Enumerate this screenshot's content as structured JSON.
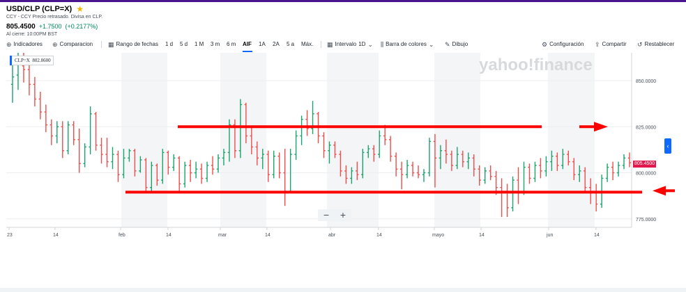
{
  "header": {
    "title": "USD/CLP (CLP=X)",
    "subtitle": "CCY - CCY Precio retrasado. Divisa en CLP.",
    "price": "805.4500",
    "change": "+1.7500",
    "change_pct": "(+0.2177%)",
    "close_note": "Al cierre: 10:00PM BST"
  },
  "toolbar": {
    "indicators": "Indicadores",
    "comparison": "Comparacion",
    "date_range": "Rango de fechas",
    "ranges": [
      "1 d",
      "5 d",
      "1 M",
      "3 m",
      "6 m",
      "AIF",
      "1A",
      "2A",
      "5 a",
      "Máx."
    ],
    "active_range": "AIF",
    "interval_label": "Intervalo",
    "interval_value": "1D",
    "bar_colors": "Barra de colores",
    "drawing": "Dibujo",
    "settings": "Configuración",
    "share": "Compartir",
    "reset": "Restablecer"
  },
  "tooltip": {
    "symbol": "CLP=X",
    "value": "802.8600"
  },
  "watermark": "yahoo!finance",
  "zoom": {
    "minus": "−",
    "plus": "+"
  },
  "current_price_badge": "805.4500",
  "colors": {
    "up": "#1aa36f",
    "down": "#ef4d4d",
    "annotation": "#ff0000",
    "accent": "#0f69ff",
    "header_bar": "#4a148c"
  },
  "chart_data": {
    "type": "ohlc",
    "y_ticks": [
      "850.0000",
      "825.0000",
      "800.0000",
      "775.0000"
    ],
    "ylim": [
      770,
      835
    ],
    "x_ticks": [
      "23",
      "14",
      "feb",
      "14",
      "mar",
      "14",
      "abr",
      "14",
      "mayo",
      "14",
      "jun",
      "14"
    ],
    "bars": [
      {
        "o": 848.0,
        "h": 862.0,
        "l": 838.0,
        "c": 852.0
      },
      {
        "o": 853.0,
        "h": 868.0,
        "l": 845.0,
        "c": 860.0
      },
      {
        "o": 858.0,
        "h": 866.0,
        "l": 849.0,
        "c": 856.0
      },
      {
        "o": 856.0,
        "h": 862.0,
        "l": 842.0,
        "c": 848.0
      },
      {
        "o": 848.0,
        "h": 852.0,
        "l": 836.0,
        "c": 840.0
      },
      {
        "o": 840.0,
        "h": 844.0,
        "l": 829.0,
        "c": 833.0
      },
      {
        "o": 833.0,
        "h": 837.0,
        "l": 822.0,
        "c": 826.0
      },
      {
        "o": 826.0,
        "h": 829.0,
        "l": 815.0,
        "c": 820.0
      },
      {
        "o": 820.0,
        "h": 828.0,
        "l": 816.0,
        "c": 825.0
      },
      {
        "o": 825.0,
        "h": 828.0,
        "l": 808.0,
        "c": 812.0
      },
      {
        "o": 812.0,
        "h": 828.0,
        "l": 810.0,
        "c": 826.0
      },
      {
        "o": 826.0,
        "h": 828.0,
        "l": 815.0,
        "c": 818.0
      },
      {
        "o": 818.0,
        "h": 824.0,
        "l": 800.0,
        "c": 805.0
      },
      {
        "o": 805.0,
        "h": 816.0,
        "l": 803.0,
        "c": 814.0
      },
      {
        "o": 814.0,
        "h": 836.0,
        "l": 810.0,
        "c": 832.0
      },
      {
        "o": 832.0,
        "h": 833.0,
        "l": 812.0,
        "c": 815.0
      },
      {
        "o": 815.0,
        "h": 819.0,
        "l": 805.0,
        "c": 810.0
      },
      {
        "o": 810.0,
        "h": 819.0,
        "l": 803.0,
        "c": 806.0
      },
      {
        "o": 806.0,
        "h": 814.0,
        "l": 802.0,
        "c": 810.0
      },
      {
        "o": 810.0,
        "h": 812.0,
        "l": 795.0,
        "c": 799.0
      },
      {
        "o": 799.0,
        "h": 813.0,
        "l": 797.0,
        "c": 808.0
      },
      {
        "o": 808.0,
        "h": 813.0,
        "l": 806.0,
        "c": 812.0
      },
      {
        "o": 812.0,
        "h": 813.0,
        "l": 798.0,
        "c": 801.0
      },
      {
        "o": 801.0,
        "h": 809.0,
        "l": 800.0,
        "c": 807.0
      },
      {
        "o": 807.0,
        "h": 808.0,
        "l": 789.0,
        "c": 792.0
      },
      {
        "o": 792.0,
        "h": 806.0,
        "l": 790.0,
        "c": 804.0
      },
      {
        "o": 804.0,
        "h": 805.0,
        "l": 793.0,
        "c": 796.0
      },
      {
        "o": 796.0,
        "h": 813.0,
        "l": 794.0,
        "c": 811.0
      },
      {
        "o": 811.0,
        "h": 812.0,
        "l": 799.0,
        "c": 803.0
      },
      {
        "o": 803.0,
        "h": 810.0,
        "l": 801.0,
        "c": 808.0
      },
      {
        "o": 808.0,
        "h": 809.0,
        "l": 790.0,
        "c": 794.0
      },
      {
        "o": 794.0,
        "h": 806.0,
        "l": 792.0,
        "c": 804.0
      },
      {
        "o": 804.0,
        "h": 807.0,
        "l": 795.0,
        "c": 800.0
      },
      {
        "o": 800.0,
        "h": 806.0,
        "l": 797.0,
        "c": 802.0
      },
      {
        "o": 802.0,
        "h": 805.0,
        "l": 794.0,
        "c": 797.0
      },
      {
        "o": 797.0,
        "h": 806.0,
        "l": 795.0,
        "c": 804.0
      },
      {
        "o": 804.0,
        "h": 809.0,
        "l": 799.0,
        "c": 802.0
      },
      {
        "o": 802.0,
        "h": 810.0,
        "l": 800.0,
        "c": 808.0
      },
      {
        "o": 808.0,
        "h": 813.0,
        "l": 804.0,
        "c": 811.0
      },
      {
        "o": 811.0,
        "h": 829.0,
        "l": 806.0,
        "c": 826.0
      },
      {
        "o": 826.0,
        "h": 829.0,
        "l": 808.0,
        "c": 812.0
      },
      {
        "o": 812.0,
        "h": 840.0,
        "l": 808.0,
        "c": 837.0
      },
      {
        "o": 837.0,
        "h": 838.0,
        "l": 816.0,
        "c": 820.0
      },
      {
        "o": 820.0,
        "h": 825.0,
        "l": 810.0,
        "c": 814.0
      },
      {
        "o": 814.0,
        "h": 817.0,
        "l": 804.0,
        "c": 808.0
      },
      {
        "o": 808.0,
        "h": 813.0,
        "l": 802.0,
        "c": 810.0
      },
      {
        "o": 810.0,
        "h": 812.0,
        "l": 795.0,
        "c": 799.0
      },
      {
        "o": 799.0,
        "h": 812.0,
        "l": 797.0,
        "c": 809.0
      },
      {
        "o": 809.0,
        "h": 811.0,
        "l": 797.0,
        "c": 800.0
      },
      {
        "o": 800.0,
        "h": 813.0,
        "l": 782.0,
        "c": 790.0
      },
      {
        "o": 790.0,
        "h": 813.0,
        "l": 789.0,
        "c": 810.0
      },
      {
        "o": 810.0,
        "h": 823.0,
        "l": 807.0,
        "c": 820.0
      },
      {
        "o": 820.0,
        "h": 831.0,
        "l": 815.0,
        "c": 829.0
      },
      {
        "o": 829.0,
        "h": 834.0,
        "l": 820.0,
        "c": 824.0
      },
      {
        "o": 824.0,
        "h": 839.0,
        "l": 821.0,
        "c": 832.0
      },
      {
        "o": 832.0,
        "h": 833.0,
        "l": 816.0,
        "c": 820.0
      },
      {
        "o": 820.0,
        "h": 822.0,
        "l": 808.0,
        "c": 812.0
      },
      {
        "o": 812.0,
        "h": 817.0,
        "l": 805.0,
        "c": 815.0
      },
      {
        "o": 815.0,
        "h": 817.0,
        "l": 808.0,
        "c": 810.0
      },
      {
        "o": 810.0,
        "h": 812.0,
        "l": 798.0,
        "c": 801.0
      },
      {
        "o": 801.0,
        "h": 804.0,
        "l": 794.0,
        "c": 797.0
      },
      {
        "o": 797.0,
        "h": 803.0,
        "l": 794.0,
        "c": 801.0
      },
      {
        "o": 801.0,
        "h": 806.0,
        "l": 796.0,
        "c": 799.0
      },
      {
        "o": 799.0,
        "h": 813.0,
        "l": 797.0,
        "c": 811.0
      },
      {
        "o": 811.0,
        "h": 815.0,
        "l": 808.0,
        "c": 813.0
      },
      {
        "o": 813.0,
        "h": 815.0,
        "l": 806.0,
        "c": 810.0
      },
      {
        "o": 810.0,
        "h": 823.0,
        "l": 808.0,
        "c": 820.0
      },
      {
        "o": 820.0,
        "h": 826.0,
        "l": 815.0,
        "c": 818.0
      },
      {
        "o": 818.0,
        "h": 820.0,
        "l": 806.0,
        "c": 809.0
      },
      {
        "o": 809.0,
        "h": 811.0,
        "l": 798.0,
        "c": 802.0
      },
      {
        "o": 802.0,
        "h": 806.0,
        "l": 791.0,
        "c": 799.0
      },
      {
        "o": 799.0,
        "h": 807.0,
        "l": 797.0,
        "c": 804.0
      },
      {
        "o": 804.0,
        "h": 806.0,
        "l": 798.0,
        "c": 800.0
      },
      {
        "o": 800.0,
        "h": 804.0,
        "l": 797.0,
        "c": 799.0
      },
      {
        "o": 799.0,
        "h": 802.0,
        "l": 795.0,
        "c": 800.0
      },
      {
        "o": 800.0,
        "h": 819.0,
        "l": 798.0,
        "c": 817.0
      },
      {
        "o": 817.0,
        "h": 821.0,
        "l": 792.0,
        "c": 808.0
      },
      {
        "o": 808.0,
        "h": 815.0,
        "l": 802.0,
        "c": 812.0
      },
      {
        "o": 812.0,
        "h": 818.0,
        "l": 805.0,
        "c": 810.0
      },
      {
        "o": 810.0,
        "h": 812.0,
        "l": 801.0,
        "c": 804.0
      },
      {
        "o": 804.0,
        "h": 814.0,
        "l": 802.0,
        "c": 810.0
      },
      {
        "o": 810.0,
        "h": 812.0,
        "l": 803.0,
        "c": 806.0
      },
      {
        "o": 806.0,
        "h": 811.0,
        "l": 802.0,
        "c": 808.0
      },
      {
        "o": 808.0,
        "h": 810.0,
        "l": 798.0,
        "c": 802.0
      },
      {
        "o": 802.0,
        "h": 804.0,
        "l": 793.0,
        "c": 796.0
      },
      {
        "o": 796.0,
        "h": 803.0,
        "l": 794.0,
        "c": 801.0
      },
      {
        "o": 801.0,
        "h": 804.0,
        "l": 796.0,
        "c": 798.0
      },
      {
        "o": 798.0,
        "h": 801.0,
        "l": 788.0,
        "c": 792.0
      },
      {
        "o": 792.0,
        "h": 797.0,
        "l": 776.0,
        "c": 790.0
      },
      {
        "o": 790.0,
        "h": 794.0,
        "l": 776.0,
        "c": 781.0
      },
      {
        "o": 781.0,
        "h": 798.0,
        "l": 779.0,
        "c": 796.0
      },
      {
        "o": 796.0,
        "h": 803.0,
        "l": 783.0,
        "c": 789.0
      },
      {
        "o": 789.0,
        "h": 806.0,
        "l": 788.0,
        "c": 803.0
      },
      {
        "o": 803.0,
        "h": 805.0,
        "l": 794.0,
        "c": 797.0
      },
      {
        "o": 797.0,
        "h": 806.0,
        "l": 795.0,
        "c": 804.0
      },
      {
        "o": 804.0,
        "h": 808.0,
        "l": 797.0,
        "c": 801.0
      },
      {
        "o": 801.0,
        "h": 809.0,
        "l": 798.0,
        "c": 806.0
      },
      {
        "o": 806.0,
        "h": 812.0,
        "l": 801.0,
        "c": 809.0
      },
      {
        "o": 809.0,
        "h": 811.0,
        "l": 801.0,
        "c": 804.0
      },
      {
        "o": 804.0,
        "h": 813.0,
        "l": 802.0,
        "c": 810.0
      },
      {
        "o": 810.0,
        "h": 812.0,
        "l": 804.0,
        "c": 806.0
      },
      {
        "o": 806.0,
        "h": 808.0,
        "l": 796.0,
        "c": 799.0
      },
      {
        "o": 799.0,
        "h": 804.0,
        "l": 795.0,
        "c": 801.0
      },
      {
        "o": 801.0,
        "h": 803.0,
        "l": 790.0,
        "c": 792.0
      },
      {
        "o": 792.0,
        "h": 797.0,
        "l": 783.0,
        "c": 789.0
      },
      {
        "o": 789.0,
        "h": 794.0,
        "l": 779.0,
        "c": 783.0
      },
      {
        "o": 783.0,
        "h": 799.0,
        "l": 781.0,
        "c": 797.0
      },
      {
        "o": 797.0,
        "h": 805.0,
        "l": 795.0,
        "c": 803.0
      },
      {
        "o": 803.0,
        "h": 806.0,
        "l": 796.0,
        "c": 800.0
      },
      {
        "o": 800.0,
        "h": 806.0,
        "l": 798.0,
        "c": 804.0
      },
      {
        "o": 804.0,
        "h": 810.0,
        "l": 802.0,
        "c": 808.0
      },
      {
        "o": 808.0,
        "h": 811.0,
        "l": 803.0,
        "c": 805.45
      }
    ],
    "annotations": {
      "resistance_level": 825.0,
      "support_level": 789.5
    }
  }
}
